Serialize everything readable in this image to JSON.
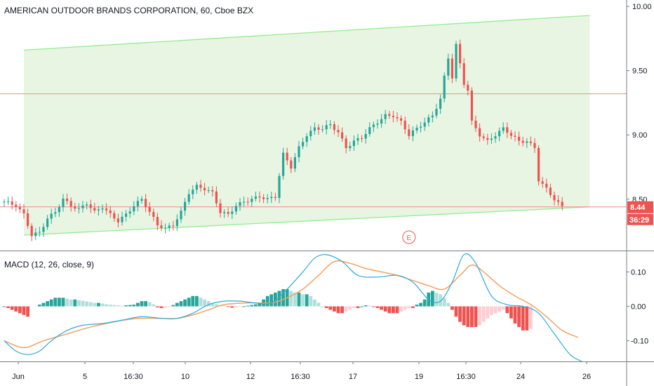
{
  "chart_title": "AMERICAN OUTDOOR BRANDS CORPORATION, 60, Cboe BZX",
  "macd_title": "MACD (12, 26, close, 9)",
  "colors": {
    "up": "#26a69a",
    "down": "#ef5350",
    "channel_line": "#90ee90",
    "channel_fill": "#e8f5e2",
    "hline": "#f28b82",
    "macd_line": "#2eaadc",
    "signal_line": "#f4a261",
    "hist_up_strong": "#26a69a",
    "hist_up_weak": "#b2dfdb",
    "hist_down_strong": "#ef5350",
    "hist_down_weak": "#ffcdd2",
    "price_badge": "#ef5350"
  },
  "price_badge": {
    "price": "8.44",
    "countdown": "36:29"
  },
  "earnings_marker": "E",
  "chart_data": [
    {
      "type": "candlestick",
      "title": "AMERICAN OUTDOOR BRANDS CORPORATION, 60, Cboe BZX",
      "ylim": [
        8.1,
        10.05
      ],
      "y_ticks": [
        "10.00",
        "9.50",
        "9.00",
        "8.50"
      ],
      "x_ticks": [
        "Jun",
        "5",
        "16:30",
        "10",
        "12",
        "16:30",
        "17",
        "19",
        "16:30",
        "24",
        "26"
      ],
      "close_anchors": [
        [
          0,
          8.48
        ],
        [
          3,
          8.45
        ],
        [
          5,
          8.38
        ],
        [
          7,
          8.22
        ],
        [
          9,
          8.24
        ],
        [
          11,
          8.35
        ],
        [
          13,
          8.4
        ],
        [
          15,
          8.5
        ],
        [
          17,
          8.45
        ],
        [
          19,
          8.42
        ],
        [
          21,
          8.47
        ],
        [
          23,
          8.4
        ],
        [
          25,
          8.44
        ],
        [
          27,
          8.38
        ],
        [
          29,
          8.33
        ],
        [
          31,
          8.38
        ],
        [
          33,
          8.45
        ],
        [
          35,
          8.5
        ],
        [
          37,
          8.4
        ],
        [
          39,
          8.3
        ],
        [
          41,
          8.27
        ],
        [
          43,
          8.3
        ],
        [
          45,
          8.4
        ],
        [
          47,
          8.55
        ],
        [
          49,
          8.6
        ],
        [
          51,
          8.58
        ],
        [
          53,
          8.55
        ],
        [
          55,
          8.4
        ],
        [
          57,
          8.38
        ],
        [
          59,
          8.45
        ],
        [
          61,
          8.48
        ],
        [
          63,
          8.5
        ],
        [
          65,
          8.52
        ],
        [
          67,
          8.5
        ],
        [
          69,
          8.52
        ],
        [
          71,
          8.85
        ],
        [
          73,
          8.75
        ],
        [
          75,
          8.9
        ],
        [
          77,
          9.0
        ],
        [
          79,
          9.05
        ],
        [
          81,
          9.05
        ],
        [
          83,
          9.08
        ],
        [
          85,
          9.02
        ],
        [
          87,
          8.9
        ],
        [
          89,
          8.95
        ],
        [
          91,
          8.98
        ],
        [
          93,
          9.05
        ],
        [
          95,
          9.1
        ],
        [
          97,
          9.15
        ],
        [
          99,
          9.15
        ],
        [
          101,
          9.1
        ],
        [
          103,
          9.0
        ],
        [
          105,
          9.05
        ],
        [
          107,
          9.1
        ],
        [
          109,
          9.15
        ],
        [
          111,
          9.28
        ],
        [
          112,
          9.45
        ],
        [
          113,
          9.6
        ],
        [
          114,
          9.45
        ],
        [
          115,
          9.7
        ],
        [
          116,
          9.55
        ],
        [
          117,
          9.4
        ],
        [
          118,
          9.35
        ],
        [
          119,
          9.1
        ],
        [
          120,
          9.05
        ],
        [
          121,
          9.0
        ],
        [
          123,
          8.95
        ],
        [
          125,
          9.0
        ],
        [
          127,
          9.05
        ],
        [
          129,
          9.0
        ],
        [
          131,
          8.95
        ],
        [
          133,
          8.95
        ],
        [
          135,
          8.9
        ],
        [
          136,
          8.65
        ],
        [
          138,
          8.58
        ],
        [
          140,
          8.5
        ],
        [
          142,
          8.44
        ]
      ],
      "channel": {
        "upper": [
          [
            5,
            9.66
          ],
          [
            149,
            9.93
          ]
        ],
        "lower": [
          [
            5,
            8.22
          ],
          [
            149,
            8.44
          ]
        ]
      },
      "horizontal_lines": [
        9.32,
        8.44
      ],
      "earnings_at": 103
    },
    {
      "type": "line",
      "title": "MACD (12, 26, close, 9)",
      "ylim": [
        -0.16,
        0.16
      ],
      "y_ticks": [
        "0.10",
        "0.00",
        "-0.10"
      ],
      "series": [
        {
          "name": "MACD",
          "points": [
            [
              0,
              -0.1
            ],
            [
              3,
              -0.13
            ],
            [
              6,
              -0.14
            ],
            [
              9,
              -0.13
            ],
            [
              12,
              -0.1
            ],
            [
              16,
              -0.07
            ],
            [
              20,
              -0.055
            ],
            [
              25,
              -0.05
            ],
            [
              30,
              -0.04
            ],
            [
              35,
              -0.03
            ],
            [
              40,
              -0.035
            ],
            [
              44,
              -0.035
            ],
            [
              48,
              -0.02
            ],
            [
              52,
              0.005
            ],
            [
              56,
              0.015
            ],
            [
              60,
              0.015
            ],
            [
              64,
              0.01
            ],
            [
              68,
              0.01
            ],
            [
              72,
              0.05
            ],
            [
              76,
              0.1
            ],
            [
              79,
              0.14
            ],
            [
              82,
              0.15
            ],
            [
              86,
              0.13
            ],
            [
              90,
              0.09
            ],
            [
              95,
              0.085
            ],
            [
              100,
              0.09
            ],
            [
              104,
              0.07
            ],
            [
              108,
              0.02
            ],
            [
              111,
              0.015
            ],
            [
              114,
              0.07
            ],
            [
              117,
              0.15
            ],
            [
              120,
              0.125
            ],
            [
              124,
              0.03
            ],
            [
              128,
              0.005
            ],
            [
              132,
              0.0
            ],
            [
              136,
              -0.02
            ],
            [
              140,
              -0.08
            ],
            [
              144,
              -0.14
            ],
            [
              147,
              -0.16
            ]
          ]
        },
        {
          "name": "Signal",
          "points": [
            [
              0,
              -0.1
            ],
            [
              5,
              -0.12
            ],
            [
              10,
              -0.1
            ],
            [
              16,
              -0.08
            ],
            [
              22,
              -0.06
            ],
            [
              28,
              -0.045
            ],
            [
              34,
              -0.035
            ],
            [
              40,
              -0.035
            ],
            [
              44,
              -0.035
            ],
            [
              48,
              -0.025
            ],
            [
              52,
              -0.01
            ],
            [
              56,
              0.005
            ],
            [
              62,
              0.01
            ],
            [
              68,
              0.01
            ],
            [
              72,
              0.025
            ],
            [
              76,
              0.05
            ],
            [
              80,
              0.09
            ],
            [
              84,
              0.13
            ],
            [
              88,
              0.125
            ],
            [
              92,
              0.11
            ],
            [
              96,
              0.1
            ],
            [
              100,
              0.09
            ],
            [
              104,
              0.075
            ],
            [
              108,
              0.06
            ],
            [
              112,
              0.05
            ],
            [
              116,
              0.09
            ],
            [
              119,
              0.12
            ],
            [
              122,
              0.1
            ],
            [
              126,
              0.06
            ],
            [
              130,
              0.03
            ],
            [
              134,
              0.005
            ],
            [
              138,
              -0.03
            ],
            [
              142,
              -0.07
            ],
            [
              146,
              -0.09
            ]
          ]
        }
      ],
      "histogram": [
        [
          0,
          0.0
        ],
        [
          1,
          -0.005
        ],
        [
          2,
          -0.01
        ],
        [
          3,
          -0.015
        ],
        [
          4,
          -0.02
        ],
        [
          5,
          -0.025
        ],
        [
          6,
          -0.03
        ],
        [
          9,
          0.005
        ],
        [
          10,
          0.01
        ],
        [
          11,
          0.015
        ],
        [
          12,
          0.02
        ],
        [
          13,
          0.025
        ],
        [
          14,
          0.025
        ],
        [
          15,
          0.025
        ],
        [
          16,
          0.022
        ],
        [
          17,
          0.02
        ],
        [
          18,
          0.02
        ],
        [
          19,
          0.018
        ],
        [
          20,
          0.016
        ],
        [
          21,
          0.014
        ],
        [
          22,
          0.012
        ],
        [
          23,
          0.01
        ],
        [
          24,
          0.01
        ],
        [
          25,
          0.008
        ],
        [
          26,
          0.006
        ],
        [
          27,
          0.005
        ],
        [
          28,
          0.004
        ],
        [
          29,
          0.003
        ],
        [
          30,
          0.002
        ],
        [
          31,
          0.003
        ],
        [
          32,
          0.004
        ],
        [
          33,
          0.005
        ],
        [
          34,
          0.01
        ],
        [
          35,
          0.015
        ],
        [
          36,
          0.015
        ],
        [
          37,
          0.012
        ],
        [
          38,
          0.006
        ],
        [
          39,
          -0.003
        ],
        [
          40,
          -0.005
        ],
        [
          41,
          -0.004
        ],
        [
          42,
          -0.002
        ],
        [
          43,
          0.004
        ],
        [
          44,
          0.01
        ],
        [
          45,
          0.015
        ],
        [
          46,
          0.02
        ],
        [
          47,
          0.025
        ],
        [
          48,
          0.03
        ],
        [
          49,
          0.03
        ],
        [
          50,
          0.025
        ],
        [
          51,
          0.02
        ],
        [
          52,
          0.015
        ],
        [
          53,
          0.01
        ],
        [
          54,
          0.006
        ],
        [
          55,
          0.004
        ],
        [
          56,
          0.002
        ],
        [
          57,
          -0.002
        ],
        [
          58,
          -0.004
        ],
        [
          59,
          -0.003
        ],
        [
          60,
          -0.002
        ],
        [
          61,
          0.0
        ],
        [
          62,
          0.002
        ],
        [
          63,
          0.004
        ],
        [
          64,
          0.006
        ],
        [
          65,
          0.01
        ],
        [
          66,
          0.02
        ],
        [
          67,
          0.03
        ],
        [
          68,
          0.035
        ],
        [
          69,
          0.04
        ],
        [
          70,
          0.045
        ],
        [
          71,
          0.05
        ],
        [
          72,
          0.05
        ],
        [
          73,
          0.045
        ],
        [
          74,
          0.04
        ],
        [
          75,
          0.04
        ],
        [
          76,
          0.035
        ],
        [
          77,
          0.035
        ],
        [
          78,
          0.03
        ],
        [
          79,
          0.02
        ],
        [
          80,
          0.01
        ],
        [
          81,
          0.0
        ],
        [
          82,
          -0.005
        ],
        [
          83,
          -0.01
        ],
        [
          84,
          -0.015
        ],
        [
          85,
          -0.02
        ],
        [
          86,
          -0.02
        ],
        [
          87,
          -0.015
        ],
        [
          88,
          -0.01
        ],
        [
          89,
          -0.005
        ],
        [
          90,
          -0.005
        ],
        [
          91,
          0.0
        ],
        [
          92,
          0.003
        ],
        [
          93,
          0.002
        ],
        [
          94,
          -0.002
        ],
        [
          95,
          -0.005
        ],
        [
          96,
          -0.01
        ],
        [
          97,
          -0.015
        ],
        [
          98,
          -0.02
        ],
        [
          99,
          -0.02
        ],
        [
          100,
          -0.02
        ],
        [
          101,
          -0.015
        ],
        [
          102,
          -0.01
        ],
        [
          103,
          -0.005
        ],
        [
          104,
          -0.005
        ],
        [
          105,
          0.005
        ],
        [
          106,
          0.01
        ],
        [
          107,
          0.02
        ],
        [
          108,
          0.04
        ],
        [
          109,
          0.045
        ],
        [
          110,
          0.04
        ],
        [
          111,
          0.035
        ],
        [
          112,
          0.025
        ],
        [
          113,
          0.01
        ],
        [
          114,
          -0.01
        ],
        [
          115,
          -0.03
        ],
        [
          116,
          -0.045
        ],
        [
          117,
          -0.055
        ],
        [
          118,
          -0.06
        ],
        [
          119,
          -0.06
        ],
        [
          120,
          -0.06
        ],
        [
          121,
          -0.055
        ],
        [
          122,
          -0.045
        ],
        [
          123,
          -0.035
        ],
        [
          124,
          -0.025
        ],
        [
          125,
          -0.02
        ],
        [
          126,
          -0.015
        ],
        [
          127,
          -0.01
        ],
        [
          128,
          -0.02
        ],
        [
          129,
          -0.035
        ],
        [
          130,
          -0.05
        ],
        [
          131,
          -0.06
        ],
        [
          132,
          -0.07
        ],
        [
          133,
          -0.07
        ],
        [
          134,
          -0.065
        ]
      ]
    }
  ]
}
